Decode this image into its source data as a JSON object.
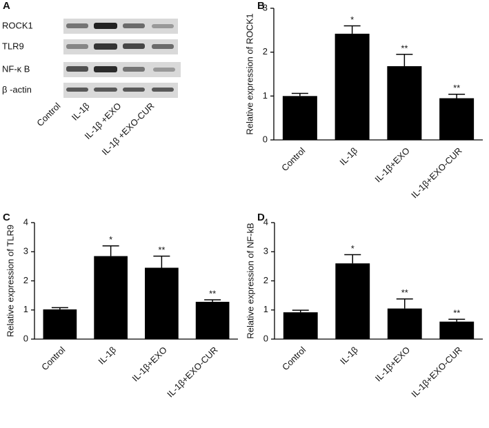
{
  "blot": {
    "label": "A",
    "rows": [
      "ROCK1",
      "TLR9",
      "NF-κ B",
      "β -actin"
    ],
    "columns": [
      "Control",
      "IL-1β",
      "IL-1β +EXO",
      "IL-1β +EXO-CUR"
    ]
  },
  "chart_data": [
    {
      "type": "bar",
      "panel": "B",
      "y_label": "Relative expression of ROCK1",
      "categories": [
        "Control",
        "IL-1β",
        "IL-1β+EXO",
        "IL-1β+EXO-CUR"
      ],
      "values": [
        1.0,
        2.42,
        1.68,
        0.95
      ],
      "errors": [
        0.06,
        0.18,
        0.27,
        0.09
      ],
      "color": "#000000",
      "ylim": [
        0,
        3
      ],
      "yticks": [
        0,
        1,
        2,
        3
      ],
      "annotations": [
        {
          "category": "IL-1β",
          "text": "*"
        },
        {
          "category": "IL-1β+EXO",
          "text": "**"
        },
        {
          "category": "IL-1β+EXO-CUR",
          "text": "**"
        }
      ]
    },
    {
      "type": "bar",
      "panel": "C",
      "y_label": "Relative expression of TLR9",
      "categories": [
        "Control",
        "IL-1β",
        "IL-1β+EXO",
        "IL-1β+EXO-CUR"
      ],
      "values": [
        1.02,
        2.85,
        2.45,
        1.28
      ],
      "errors": [
        0.06,
        0.35,
        0.4,
        0.07
      ],
      "color": "#000000",
      "ylim": [
        0,
        4
      ],
      "yticks": [
        0,
        1,
        2,
        3,
        4
      ],
      "annotations": [
        {
          "category": "IL-1β",
          "text": "*"
        },
        {
          "category": "IL-1β+EXO",
          "text": "**"
        },
        {
          "category": "IL-1β+EXO-CUR",
          "text": "**"
        }
      ]
    },
    {
      "type": "bar",
      "panel": "D",
      "y_label": "Relative expression of NF-kB",
      "categories": [
        "Control",
        "IL-1β",
        "IL-1β+EXO",
        "IL-1β+EXO-CUR"
      ],
      "values": [
        0.92,
        2.6,
        1.05,
        0.6
      ],
      "errors": [
        0.07,
        0.3,
        0.33,
        0.08
      ],
      "color": "#000000",
      "ylim": [
        0,
        4
      ],
      "yticks": [
        0,
        1,
        2,
        3,
        4
      ],
      "annotations": [
        {
          "category": "IL-1β",
          "text": "*"
        },
        {
          "category": "IL-1β+EXO",
          "text": "**"
        },
        {
          "category": "IL-1β+EXO-CUR",
          "text": "**"
        }
      ]
    }
  ]
}
